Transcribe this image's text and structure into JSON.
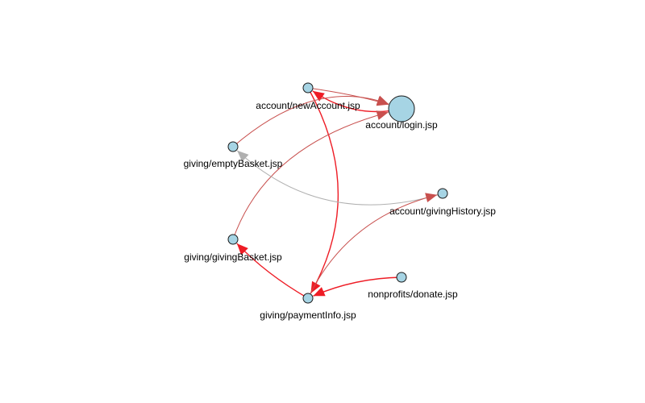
{
  "graph": {
    "colors": {
      "node_fill": "#a6d4e4",
      "node_stroke": "#1a1a1a",
      "edge_strong": "#ee1c25",
      "edge_medium": "#c8504e",
      "edge_light": "#b0b0b0"
    },
    "nodes": [
      {
        "id": "newAccount",
        "label": "account/newAccount.jsp",
        "size": "small"
      },
      {
        "id": "login",
        "label": "account/login.jsp",
        "size": "large"
      },
      {
        "id": "emptyBasket",
        "label": "giving/emptyBasket.jsp",
        "size": "small"
      },
      {
        "id": "givingHistory",
        "label": "account/givingHistory.jsp",
        "size": "small"
      },
      {
        "id": "givingBasket",
        "label": "giving/givingBasket.jsp",
        "size": "small"
      },
      {
        "id": "donate",
        "label": "nonprofits/donate.jsp",
        "size": "small"
      },
      {
        "id": "paymentInfo",
        "label": "giving/paymentInfo.jsp",
        "size": "small"
      }
    ],
    "edges": [
      {
        "from": "login",
        "to": "newAccount",
        "weight": "strong"
      },
      {
        "from": "newAccount",
        "to": "login",
        "weight": "medium"
      },
      {
        "from": "newAccount",
        "to": "paymentInfo",
        "weight": "strong"
      },
      {
        "from": "emptyBasket",
        "to": "login",
        "weight": "medium"
      },
      {
        "from": "givingBasket",
        "to": "login",
        "weight": "medium"
      },
      {
        "from": "givingHistory",
        "to": "emptyBasket",
        "weight": "light"
      },
      {
        "from": "paymentInfo",
        "to": "givingHistory",
        "weight": "medium"
      },
      {
        "from": "paymentInfo",
        "to": "givingBasket",
        "weight": "strong"
      },
      {
        "from": "donate",
        "to": "paymentInfo",
        "weight": "strong"
      }
    ]
  }
}
